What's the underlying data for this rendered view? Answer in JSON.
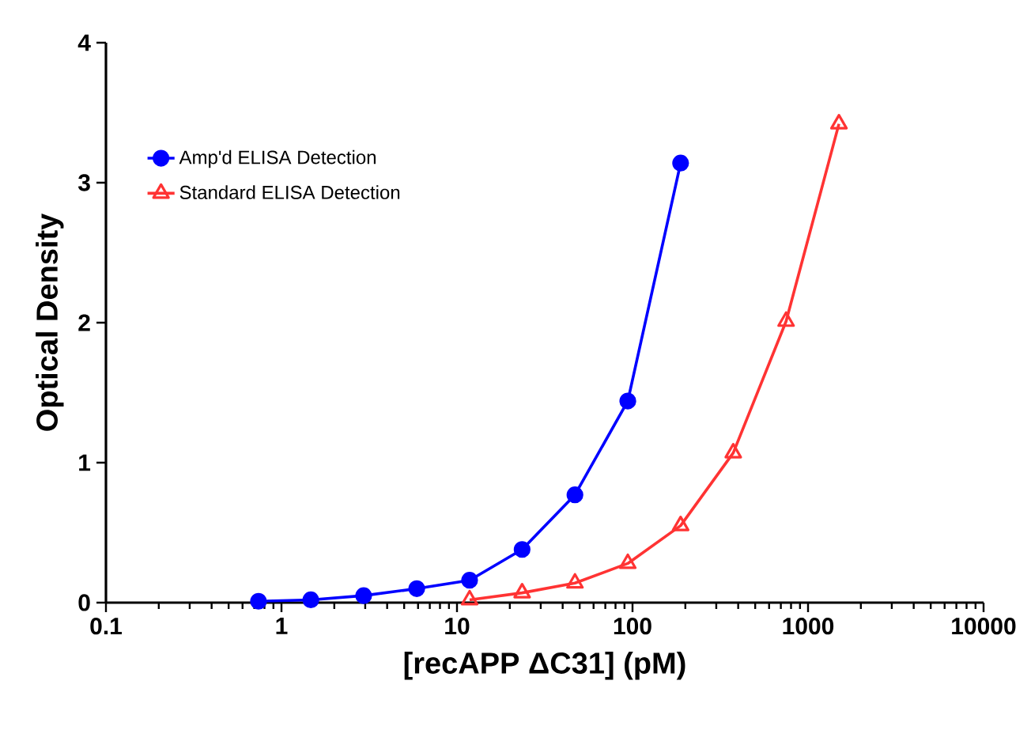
{
  "chart_data": {
    "type": "line",
    "xlabel": "[recAPP ΔC31] (pM)",
    "ylabel": "Optical Density",
    "log": "x",
    "xlim": [
      0.1,
      10000
    ],
    "xticks": [
      0.1,
      1,
      10,
      100,
      1000,
      10000
    ],
    "ylim": [
      0,
      4
    ],
    "yticks": [
      0,
      1,
      2,
      3,
      4
    ],
    "grid": false,
    "legend": "top left",
    "series": [
      {
        "name": "Amp'd ELISA Detection",
        "color": "#0000ff",
        "marker": "circle",
        "x": [
          0.74,
          1.47,
          2.94,
          5.9,
          11.8,
          23.5,
          47,
          94,
          188
        ],
        "values": [
          0.01,
          0.02,
          0.05,
          0.1,
          0.16,
          0.38,
          0.77,
          1.44,
          3.14
        ]
      },
      {
        "name": "Standard ELISA Detection",
        "color": "#ff3333",
        "marker": "triangle",
        "x": [
          11.8,
          23.5,
          47,
          94,
          188,
          375,
          750,
          1500
        ],
        "values": [
          0.02,
          0.07,
          0.14,
          0.28,
          0.55,
          1.07,
          2.01,
          3.42
        ]
      }
    ]
  }
}
